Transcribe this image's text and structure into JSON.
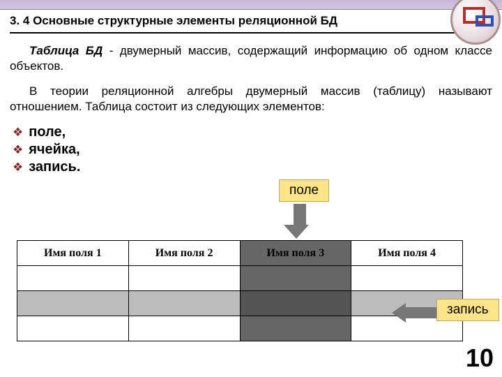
{
  "heading": "3. 4 Основные структурные элементы реляционной БД",
  "para1_html": "<b><i>Таблица БД</i></b> - двумерный массив, содержащий информацию об одном классе объектов.",
  "para2": "В теории реляционной алгебры двумерный массив (таблицу) называют отношением. Таблица состоит из следующих элементов:",
  "bullets": [
    "поле,",
    "ячейка,",
    "запись."
  ],
  "bullet_marker": "❖",
  "labels": {
    "field": "поле",
    "record": "запись"
  },
  "table": {
    "columns": [
      "Имя поля 1",
      "Имя поля 2",
      "Имя поля 3",
      "Имя поля 4"
    ],
    "row_count": 3,
    "highlighted_col_index": 2,
    "highlighted_row_index": 2,
    "colors": {
      "col_shade": "#666666",
      "row_shade": "#bdbdbd",
      "intersection": "#555555",
      "border": "#000000"
    }
  },
  "page_number": "10",
  "arrow_color": "#777777",
  "label_bg": "#ffe48a",
  "bullet_color": "#7a2a2a"
}
